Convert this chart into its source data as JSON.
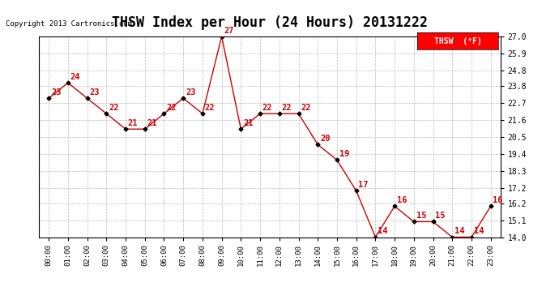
{
  "title": "THSW Index per Hour (24 Hours) 20131222",
  "copyright": "Copyright 2013 Cartronics.com",
  "legend_label": "THSW  (°F)",
  "hours": [
    "00:00",
    "01:00",
    "02:00",
    "03:00",
    "04:00",
    "05:00",
    "06:00",
    "07:00",
    "08:00",
    "09:00",
    "10:00",
    "11:00",
    "12:00",
    "13:00",
    "14:00",
    "15:00",
    "16:00",
    "17:00",
    "18:00",
    "19:00",
    "20:00",
    "21:00",
    "22:00",
    "23:00"
  ],
  "values": [
    23,
    24,
    23,
    22,
    21,
    21,
    22,
    23,
    22,
    27,
    21,
    22,
    22,
    22,
    20,
    19,
    17,
    14,
    16,
    15,
    15,
    14,
    14,
    16
  ],
  "ylim_min": 14.0,
  "ylim_max": 27.0,
  "yticks": [
    14.0,
    15.1,
    16.2,
    17.2,
    18.3,
    19.4,
    20.5,
    21.6,
    22.7,
    23.8,
    24.8,
    25.9,
    27.0
  ],
  "line_color": "#cc0000",
  "marker_color": "#000000",
  "grid_color": "#bbbbbb",
  "background_color": "#ffffff",
  "title_fontsize": 12,
  "annotation_fontsize": 7.5
}
